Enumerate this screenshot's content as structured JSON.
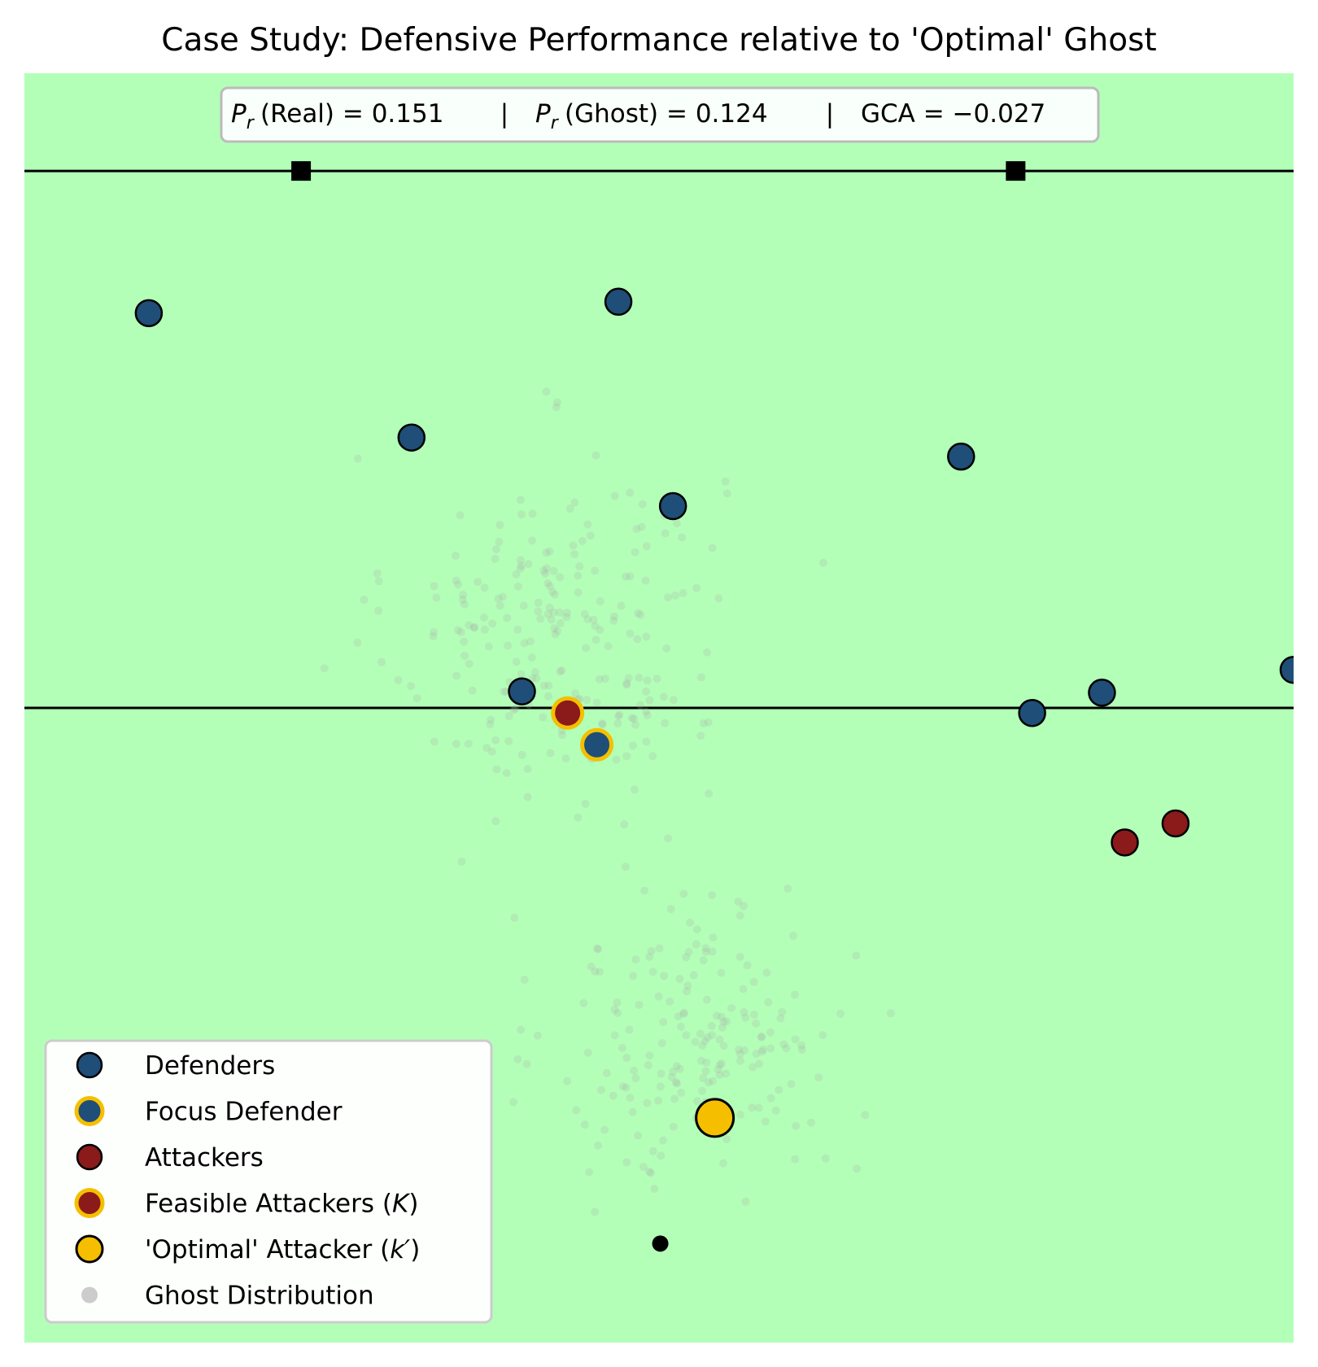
{
  "chart_data": {
    "type": "scatter",
    "title": "Case Study: Defensive Performance relative to 'Optimal' Ghost",
    "xlabel": "",
    "ylabel": "",
    "xlim": [
      0,
      100
    ],
    "ylim": [
      0,
      100
    ],
    "grid": false,
    "legend_position": "bottom-left",
    "stats_box": {
      "pr_real_label": "(Real) = 0.151",
      "pr_ghost_label": "(Ghost) = 0.124",
      "separator": "|",
      "gca_label": "GCA = −0.027",
      "pr_symbol": "P",
      "pr_subscript": "r"
    },
    "colors": {
      "pitch": "#b3ffb8",
      "defender": "#1f4e79",
      "attacker": "#8b1a1a",
      "highlight": "#f5bf00",
      "ghost": "#a9a9a9",
      "line": "#000000"
    },
    "lines": [
      {
        "name": "upper-line",
        "y": 92.3,
        "x_from": 0,
        "x_to": 100
      },
      {
        "name": "middle-line",
        "y": 50.0,
        "x_from": 0,
        "x_to": 100
      }
    ],
    "square_markers": [
      {
        "x": 21.8,
        "y": 92.3
      },
      {
        "x": 78.1,
        "y": 92.3
      }
    ],
    "series": [
      {
        "name": "Defenders",
        "points": [
          {
            "x": 9.8,
            "y": 81.1
          },
          {
            "x": 46.8,
            "y": 82.0
          },
          {
            "x": 30.5,
            "y": 71.3
          },
          {
            "x": 73.8,
            "y": 69.8
          },
          {
            "x": 51.1,
            "y": 65.9
          },
          {
            "x": 39.2,
            "y": 51.3
          },
          {
            "x": 79.4,
            "y": 49.6
          },
          {
            "x": 84.9,
            "y": 51.2
          },
          {
            "x": 100.0,
            "y": 53.0
          }
        ]
      },
      {
        "name": "Focus Defender",
        "points": [
          {
            "x": 45.1,
            "y": 47.1
          }
        ]
      },
      {
        "name": "Attackers",
        "points": [
          {
            "x": 86.7,
            "y": 39.4
          },
          {
            "x": 90.7,
            "y": 40.9
          }
        ]
      },
      {
        "name": "Feasible Attackers (K)",
        "points": [
          {
            "x": 42.8,
            "y": 49.6
          }
        ]
      },
      {
        "name": "'Optimal' Attacker (k′)",
        "points": [
          {
            "x": 54.4,
            "y": 17.7
          }
        ]
      },
      {
        "name": "Ghost Distribution",
        "clusters": [
          {
            "cx": 42.0,
            "cy": 56.0,
            "sx": 6.5,
            "sy": 7.0,
            "count": 230
          },
          {
            "cx": 53.5,
            "cy": 24.0,
            "sx": 5.8,
            "sy": 6.0,
            "count": 190
          }
        ]
      }
    ],
    "extra_markers": [
      {
        "name": "ball",
        "x": 50.1,
        "y": 7.8
      }
    ],
    "legend": [
      {
        "label": "Defenders",
        "key": "defender"
      },
      {
        "label": "Focus Defender",
        "key": "focus"
      },
      {
        "label": "Attackers",
        "key": "attacker"
      },
      {
        "label": "Feasible Attackers (",
        "label_math": "K",
        "label_end": ")",
        "key": "feasible"
      },
      {
        "label": "'Optimal' Attacker (",
        "label_math": "k′",
        "label_end": ")",
        "key": "optimal"
      },
      {
        "label": "Ghost Distribution",
        "key": "ghost"
      }
    ]
  }
}
